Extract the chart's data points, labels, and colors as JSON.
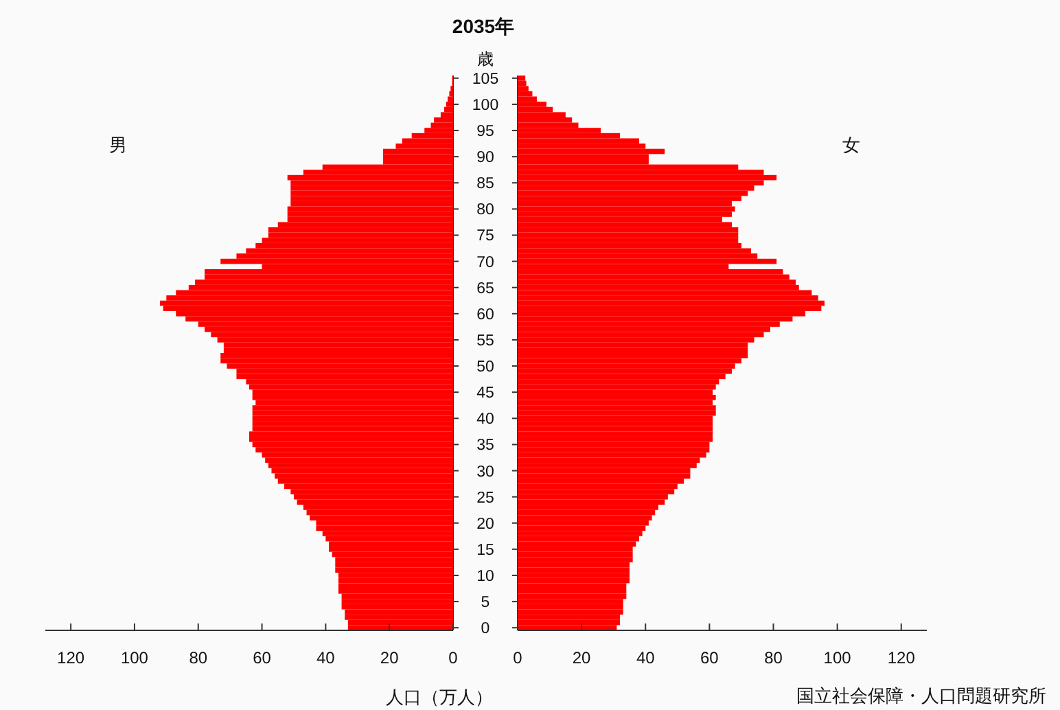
{
  "chart_data": [
    {
      "type": "bar",
      "orientation": "horizontal",
      "title": "2035年",
      "ylabel": "歳",
      "xlabel": "人口（万人）",
      "categories": [
        "105",
        null,
        null,
        null,
        null,
        "100",
        null,
        null,
        null,
        null,
        "95",
        null,
        null,
        null,
        null,
        "90",
        null,
        null,
        null,
        null,
        "85",
        null,
        null,
        null,
        null,
        "80",
        null,
        null,
        null,
        null,
        "75",
        null,
        null,
        null,
        null,
        "70",
        null,
        null,
        null,
        null,
        "65",
        null,
        null,
        null,
        null,
        "60",
        null,
        null,
        null,
        null,
        "55",
        null,
        null,
        null,
        null,
        "50",
        null,
        null,
        null,
        null,
        "45",
        null,
        null,
        null,
        null,
        "40",
        null,
        null,
        null,
        null,
        "35",
        null,
        null,
        null,
        null,
        "30",
        null,
        null,
        null,
        null,
        "25",
        null,
        null,
        null,
        null,
        "20",
        null,
        null,
        null,
        null,
        "15",
        null,
        null,
        null,
        null,
        "10",
        null,
        null,
        null,
        null,
        "5",
        null,
        null,
        null,
        null,
        "0"
      ],
      "series": [
        {
          "name": "男",
          "color": "#ff0000",
          "values": [
            0.3,
            0.3,
            0.8,
            1.2,
            1.7,
            2.2,
            2.8,
            3.9,
            6,
            7,
            9,
            13,
            16,
            18,
            22,
            22,
            22,
            41,
            47,
            52,
            51,
            51,
            51,
            51,
            51,
            52,
            52,
            52,
            55,
            58,
            58,
            60,
            62,
            65,
            68,
            73,
            60,
            78,
            78,
            81,
            83,
            87,
            90,
            92,
            91,
            87,
            84,
            80,
            78,
            76,
            74,
            72,
            72,
            73,
            73,
            71,
            68,
            68,
            65,
            64,
            63,
            63,
            62,
            63,
            63,
            63,
            63,
            63,
            64,
            64,
            63,
            62,
            60,
            59,
            58,
            57,
            56,
            55,
            53,
            51,
            50,
            49,
            47,
            46,
            45,
            43,
            43,
            41,
            40,
            39,
            39,
            38,
            37,
            37,
            37,
            36,
            36,
            36,
            36,
            35,
            35,
            35,
            34,
            34,
            33,
            33
          ]
        }
      ],
      "xlim": [
        128,
        0
      ],
      "xticks": [
        120,
        100,
        80,
        60,
        40,
        20,
        0
      ]
    },
    {
      "type": "bar",
      "orientation": "horizontal",
      "categories": [
        "105",
        null,
        null,
        null,
        null,
        "100",
        null,
        null,
        null,
        null,
        "95",
        null,
        null,
        null,
        null,
        "90",
        null,
        null,
        null,
        null,
        "85",
        null,
        null,
        null,
        null,
        "80",
        null,
        null,
        null,
        null,
        "75",
        null,
        null,
        null,
        null,
        "70",
        null,
        null,
        null,
        null,
        "65",
        null,
        null,
        null,
        null,
        "60",
        null,
        null,
        null,
        null,
        "55",
        null,
        null,
        null,
        null,
        "50",
        null,
        null,
        null,
        null,
        "45",
        null,
        null,
        null,
        null,
        "40",
        null,
        null,
        null,
        null,
        "35",
        null,
        null,
        null,
        null,
        "30",
        null,
        null,
        null,
        null,
        "25",
        null,
        null,
        null,
        null,
        "20",
        null,
        null,
        null,
        null,
        "15",
        null,
        null,
        null,
        null,
        "10",
        null,
        null,
        null,
        null,
        "5",
        null,
        null,
        null,
        null,
        "0"
      ],
      "series": [
        {
          "name": "女",
          "color": "#ff0000",
          "values": [
            2.4,
            2.7,
            3.4,
            4.6,
            6,
            9,
            11,
            15,
            17,
            19,
            26,
            32,
            38,
            40,
            46,
            41,
            41,
            69,
            77,
            81,
            77,
            74,
            72,
            70,
            67,
            68,
            67,
            64,
            67,
            69,
            69,
            69,
            70,
            73,
            75,
            81,
            66,
            83,
            85,
            87,
            88,
            92,
            94,
            96,
            95,
            90,
            86,
            82,
            79,
            77,
            74,
            72,
            72,
            72,
            70,
            68,
            67,
            65,
            63,
            62,
            61,
            62,
            61,
            62,
            62,
            61,
            61,
            61,
            61,
            61,
            60,
            60,
            59,
            57,
            56,
            54,
            54,
            52,
            50,
            49,
            47,
            46,
            44,
            43,
            42,
            41,
            40,
            39,
            38,
            37,
            36,
            36,
            36,
            35,
            35,
            35,
            35,
            34,
            34,
            34,
            33,
            33,
            33,
            32,
            32,
            31
          ]
        }
      ],
      "xlim": [
        0,
        128
      ],
      "xticks": [
        0,
        20,
        40,
        60,
        80,
        100,
        120
      ],
      "tick_labels": "x",
      "annotations": [
        "国立社会保障・人口問題研究所"
      ]
    }
  ]
}
